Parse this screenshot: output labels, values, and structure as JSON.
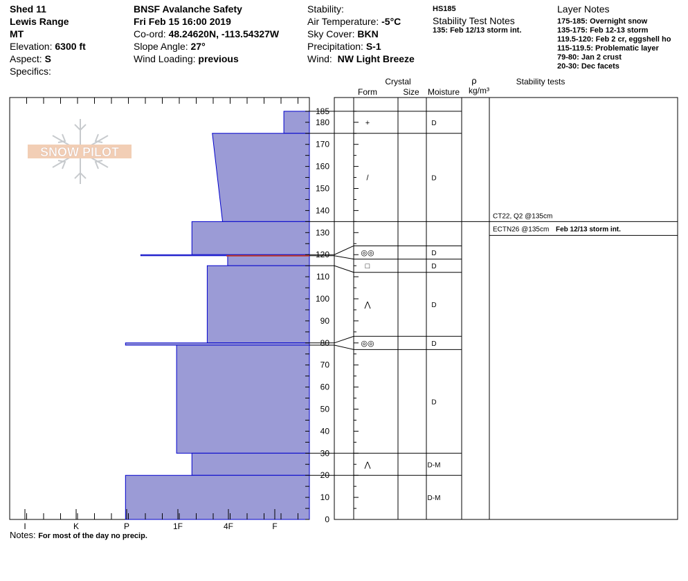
{
  "header": {
    "col1": {
      "location": "Shed 11",
      "range": "Lewis Range",
      "state": "MT",
      "elevation_label": "Elevation:",
      "elevation_value": "6300 ft",
      "aspect_label": "Aspect:",
      "aspect_value": "S",
      "specifics_label": "Specifics:"
    },
    "col2": {
      "org": "BNSF Avalanche Safety",
      "datetime": "Fri Feb 15 16:00 2019",
      "coord_label": "Co-ord:",
      "coord_value": "48.24620N, -113.54327W",
      "slope_label": "Slope Angle:",
      "slope_value": "27°",
      "wind_loading_label": "Wind Loading:",
      "wind_loading_value": "previous"
    },
    "col3": {
      "stability_label": "Stability:",
      "air_temp_label": "Air Temperature:",
      "air_temp_value": "-5°C",
      "sky_label": "Sky Cover:",
      "sky_value": "BKN",
      "precip_label": "Precipitation:",
      "precip_value": "S-1",
      "wind_label": "Wind:",
      "wind_value": "NW Light Breeze"
    },
    "col4": {
      "hs": "HS185",
      "title": "Stability Test Notes",
      "note": "135: Feb 12/13 storm int."
    },
    "col5": {
      "title": "Layer Notes",
      "notes": [
        "175-185: Overnight snow",
        "135-175: Feb 12-13 storm",
        "119.5-120:  Feb 2 cr, eggshell ho",
        "115-119.5: Problematic layer",
        "79-80: Jan 2 crust",
        "20-30: Dec facets"
      ]
    }
  },
  "logo_text": "SNOW PILOT",
  "columns": {
    "crystal": "Crystal",
    "form": "Form",
    "size": "Size",
    "moisture": "Moisture",
    "rho": "ρ",
    "density_unit": "kg/m³",
    "stability_tests": "Stability tests"
  },
  "stability_tests": [
    {
      "text": "CT22, Q2 @135cm",
      "note": ""
    },
    {
      "text": "ECTN26 @135cm",
      "note": "Feb 12/13 storm int."
    }
  ],
  "notes_label": "Notes:",
  "notes_text": "For most of the day no precip.",
  "chart_data": {
    "type": "snow-profile",
    "hs": 185,
    "hardness_scale": [
      "I",
      "K",
      "P",
      "1F",
      "4F",
      "F"
    ],
    "depth_ticks": [
      0,
      10,
      20,
      30,
      40,
      50,
      60,
      70,
      80,
      90,
      100,
      110,
      120,
      130,
      140,
      150,
      160,
      170,
      180,
      185
    ],
    "ylim": [
      0,
      185
    ],
    "hardness_profile": [
      {
        "top": 185,
        "bottom": 175,
        "hardness_top": "F",
        "hardness_bottom": "F",
        "h_top": 0.5,
        "h_bottom": 0.5
      },
      {
        "top": 175,
        "bottom": 135,
        "hardness_top": "4F",
        "hardness_bottom": "4F-",
        "h_top": 1.9,
        "h_bottom": 1.7
      },
      {
        "top": 135,
        "bottom": 120,
        "hardness_top": "1F-",
        "hardness_bottom": "1F-",
        "h_top": 2.3,
        "h_bottom": 2.3
      },
      {
        "top": 120,
        "bottom": 119.5,
        "hardness_top": "P+",
        "hardness_bottom": "P+",
        "h_top": 3.3,
        "h_bottom": 3.3
      },
      {
        "top": 119.5,
        "bottom": 115,
        "hardness_top": "4F+",
        "hardness_bottom": "4F+",
        "h_top": 1.6,
        "h_bottom": 1.6
      },
      {
        "top": 115,
        "bottom": 80,
        "hardness_top": "4F-",
        "hardness_bottom": "4F-",
        "h_top": 2.0,
        "h_bottom": 2.0
      },
      {
        "top": 80,
        "bottom": 79,
        "hardness_top": "P",
        "hardness_bottom": "P",
        "h_top": 3.6,
        "h_bottom": 3.6
      },
      {
        "top": 79,
        "bottom": 30,
        "hardness_top": "1F",
        "hardness_bottom": "1F",
        "h_top": 2.6,
        "h_bottom": 2.6
      },
      {
        "top": 30,
        "bottom": 20,
        "hardness_top": "1F-",
        "hardness_bottom": "1F-",
        "h_top": 2.3,
        "h_bottom": 2.3
      },
      {
        "top": 20,
        "bottom": 0,
        "hardness_top": "P",
        "hardness_bottom": "P",
        "h_top": 3.6,
        "h_bottom": 3.6
      }
    ],
    "weak_layer_marker": {
      "depth": 119.5,
      "color": "#c0392b"
    },
    "layers": [
      {
        "top": 185,
        "bottom": 175,
        "form": "+",
        "moisture": "D"
      },
      {
        "top": 175,
        "bottom": 135,
        "form": "/",
        "moisture": "D"
      },
      {
        "top": 135,
        "bottom": 124,
        "form": "",
        "moisture": ""
      },
      {
        "top": 124,
        "bottom": 118,
        "form": "◎◎",
        "moisture": "D"
      },
      {
        "top": 118,
        "bottom": 112,
        "form": "□",
        "moisture": "D"
      },
      {
        "top": 112,
        "bottom": 83,
        "form": "⋀",
        "moisture": "D"
      },
      {
        "top": 83,
        "bottom": 77,
        "form": "◎◎",
        "moisture": "D"
      },
      {
        "top": 77,
        "bottom": 30,
        "form": "",
        "moisture": "D"
      },
      {
        "top": 30,
        "bottom": 20,
        "form": "⋀",
        "moisture": "D-M"
      },
      {
        "top": 20,
        "bottom": 0,
        "form": "",
        "moisture": "D-M"
      }
    ],
    "colors": {
      "fill": "#9b9bd6",
      "edge": "#0000cc",
      "red": "#c0392b"
    }
  }
}
